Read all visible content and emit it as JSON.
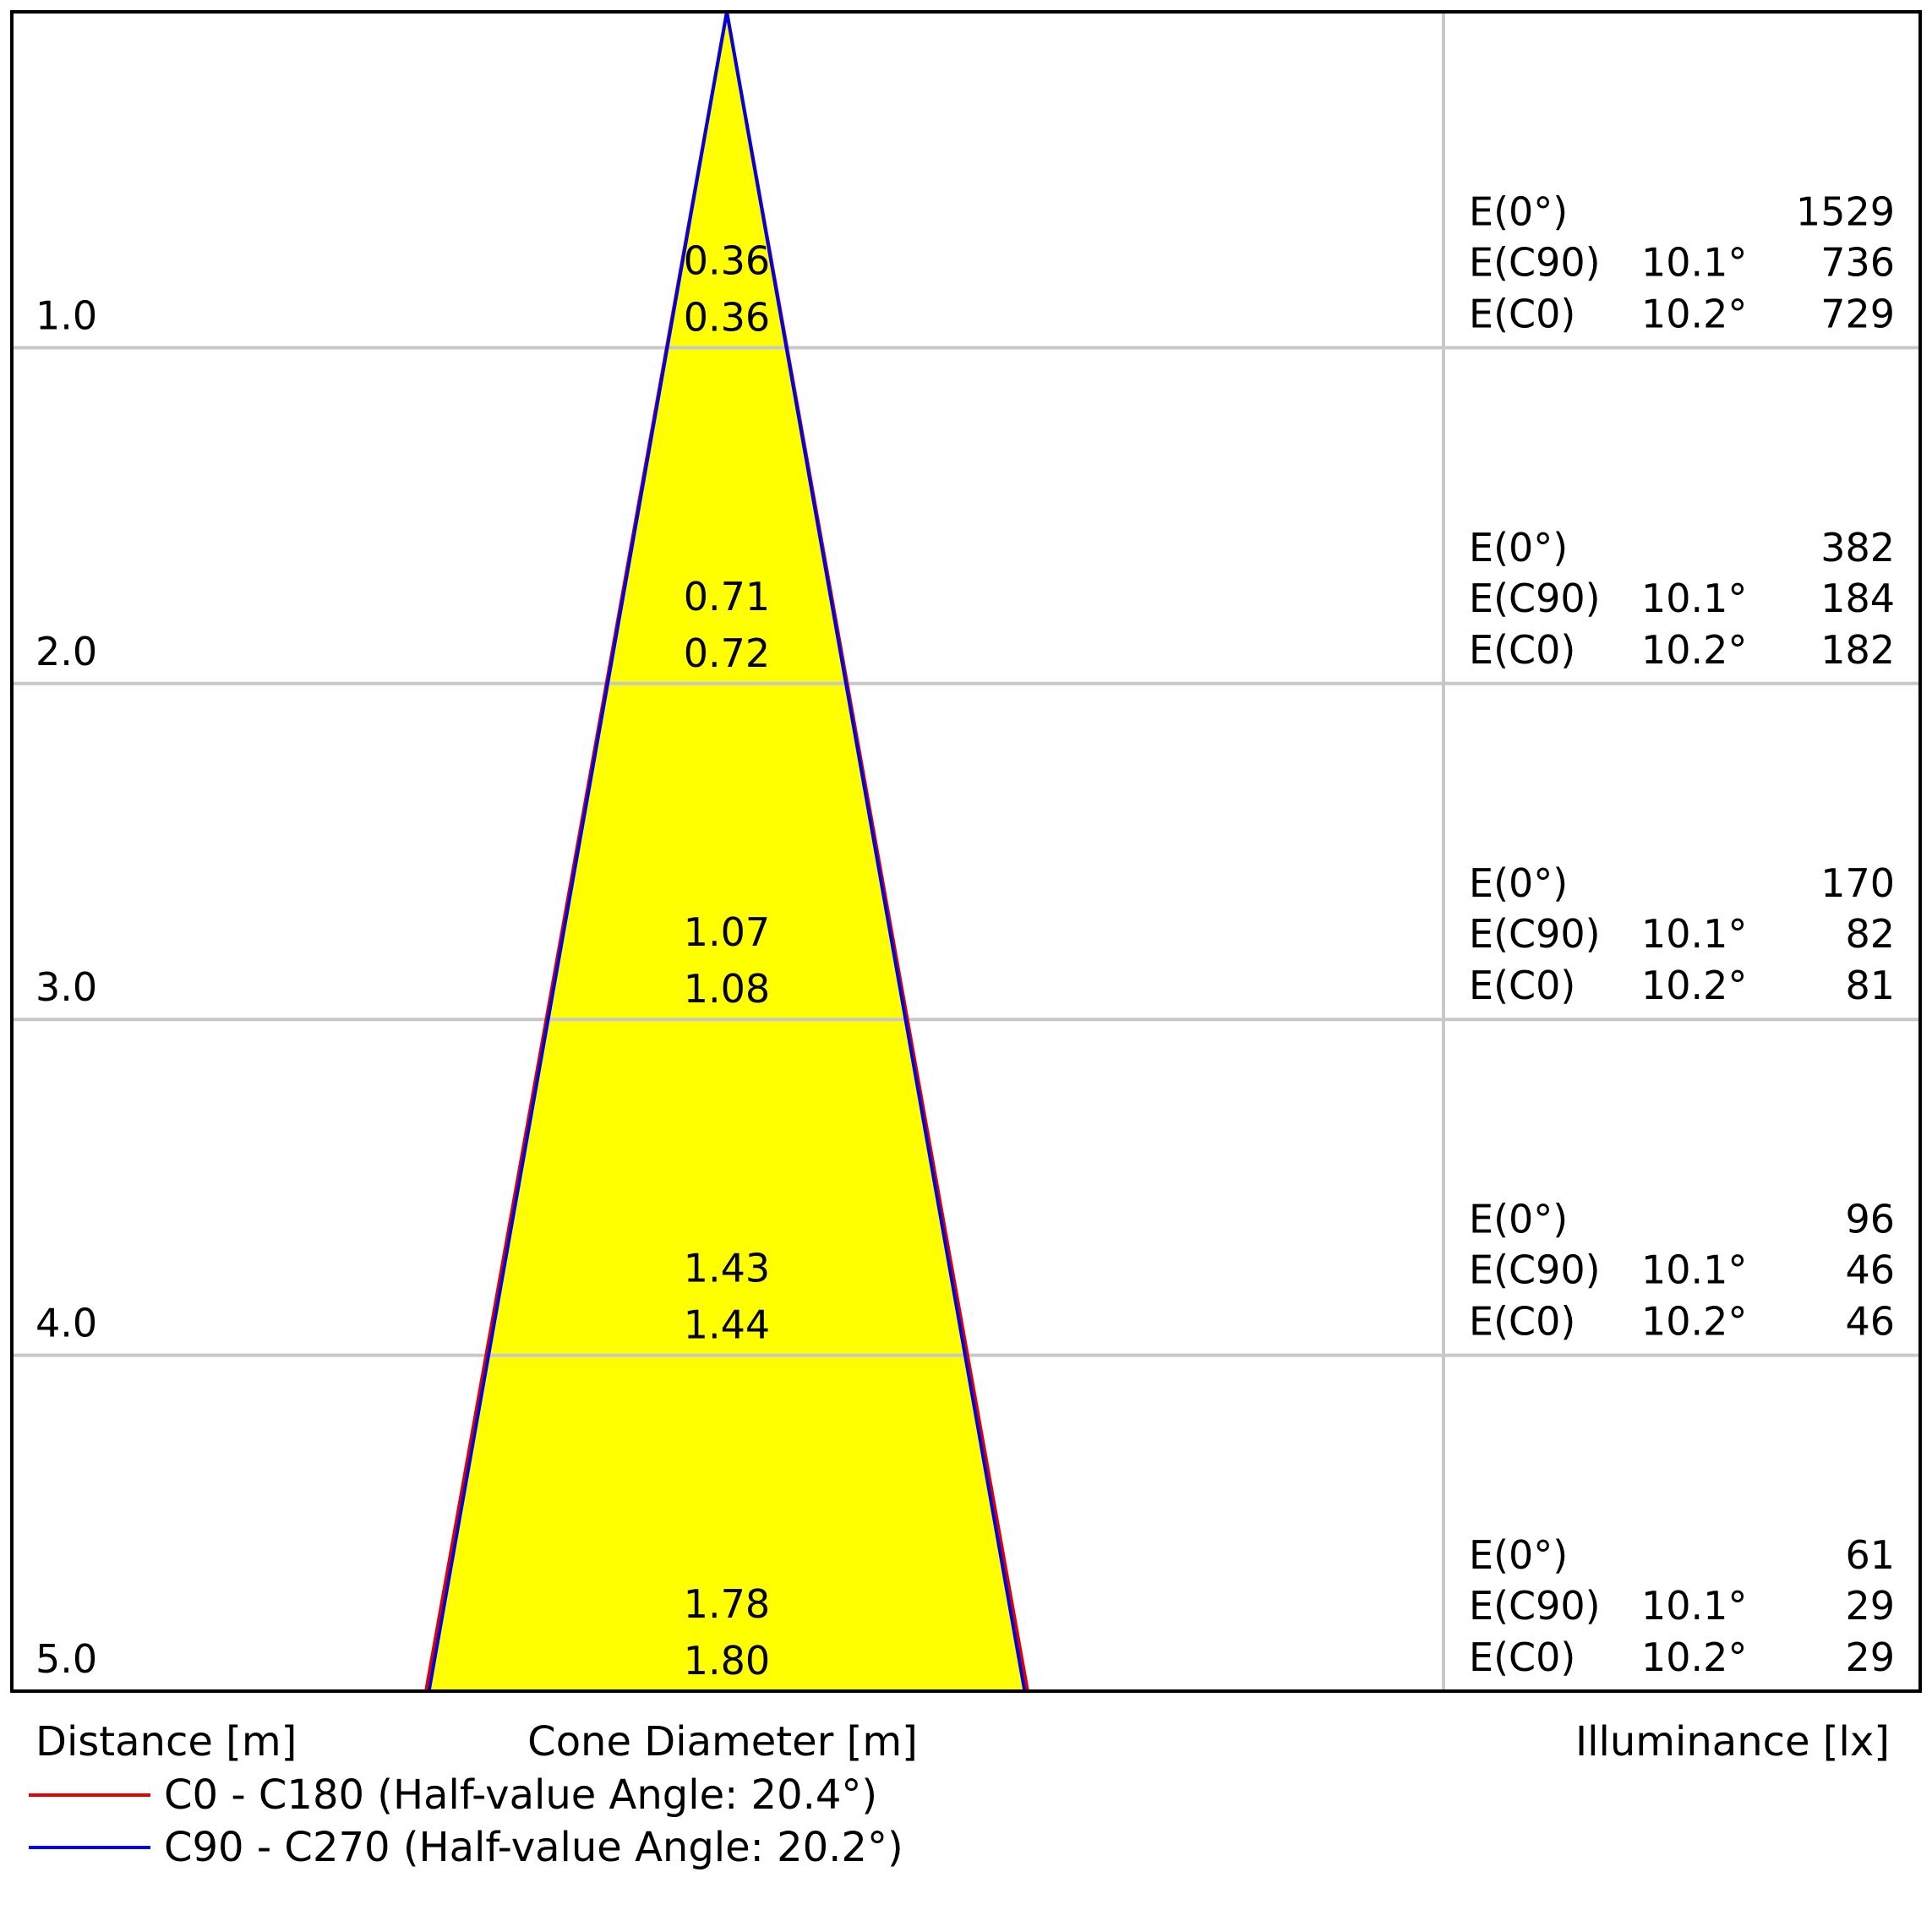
{
  "chart_data": {
    "type": "cone-diagram",
    "axis_labels": {
      "distance": "Distance [m]",
      "cone_diameter": "Cone Diameter [m]",
      "illuminance": "Illuminance [lx]"
    },
    "distance_max": 5.0,
    "rows": [
      {
        "distance": "1.0",
        "diameter_c0": "0.36",
        "diameter_c90": "0.36",
        "illuminance": [
          {
            "label": "E(0°)",
            "angle": "",
            "value": "1529"
          },
          {
            "label": "E(C90)",
            "angle": "10.1°",
            "value": "736"
          },
          {
            "label": "E(C0)",
            "angle": "10.2°",
            "value": "729"
          }
        ]
      },
      {
        "distance": "2.0",
        "diameter_c0": "0.71",
        "diameter_c90": "0.72",
        "illuminance": [
          {
            "label": "E(0°)",
            "angle": "",
            "value": "382"
          },
          {
            "label": "E(C90)",
            "angle": "10.1°",
            "value": "184"
          },
          {
            "label": "E(C0)",
            "angle": "10.2°",
            "value": "182"
          }
        ]
      },
      {
        "distance": "3.0",
        "diameter_c0": "1.07",
        "diameter_c90": "1.08",
        "illuminance": [
          {
            "label": "E(0°)",
            "angle": "",
            "value": "170"
          },
          {
            "label": "E(C90)",
            "angle": "10.1°",
            "value": "82"
          },
          {
            "label": "E(C0)",
            "angle": "10.2°",
            "value": "81"
          }
        ]
      },
      {
        "distance": "4.0",
        "diameter_c0": "1.43",
        "diameter_c90": "1.44",
        "illuminance": [
          {
            "label": "E(0°)",
            "angle": "",
            "value": "96"
          },
          {
            "label": "E(C90)",
            "angle": "10.1°",
            "value": "46"
          },
          {
            "label": "E(C0)",
            "angle": "10.2°",
            "value": "46"
          }
        ]
      },
      {
        "distance": "5.0",
        "diameter_c0": "1.78",
        "diameter_c90": "1.80",
        "illuminance": [
          {
            "label": "E(0°)",
            "angle": "",
            "value": "61"
          },
          {
            "label": "E(C90)",
            "angle": "10.1°",
            "value": "29"
          },
          {
            "label": "E(C0)",
            "angle": "10.2°",
            "value": "29"
          }
        ]
      }
    ],
    "series": [
      {
        "name": "C0 - C180 (Half-value Angle: 20.4°)",
        "half_angle_deg": 20.4,
        "color": "#e00000"
      },
      {
        "name": "C90 - C270 (Half-value Angle: 20.2°)",
        "half_angle_deg": 20.2,
        "color": "#0000e0"
      }
    ],
    "cone_fill": "#ffff00",
    "grid_color": "#c8c8c8",
    "frame_color": "#000000",
    "grid": true,
    "legend_position": "bottom-left"
  }
}
